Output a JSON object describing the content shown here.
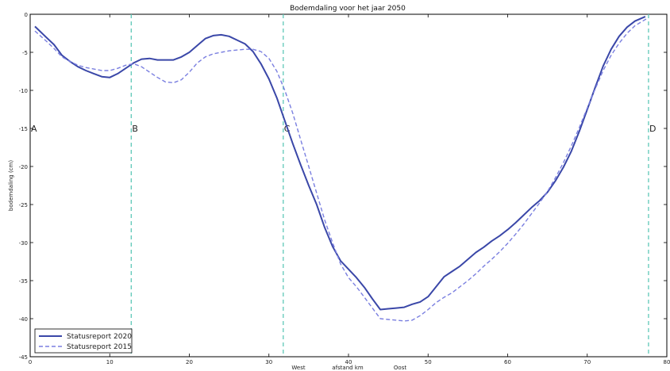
{
  "chart_data": {
    "type": "line",
    "title": "Bodemdaling voor het jaar 2050",
    "xlabel": "afstand km",
    "ylabel": "bodemdaling (cm)",
    "x_direction_labels": {
      "left": "West",
      "right": "Oost"
    },
    "xlim": [
      0,
      80
    ],
    "ylim": [
      -45,
      0
    ],
    "x_ticks": [
      0,
      10,
      20,
      30,
      40,
      50,
      60,
      70,
      80
    ],
    "y_ticks": [
      0,
      -5,
      -10,
      -15,
      -20,
      -25,
      -30,
      -35,
      -40,
      -45
    ],
    "grid": false,
    "legend_position": "bottom-left",
    "section_markers": [
      {
        "label": "A",
        "x": 0
      },
      {
        "label": "B",
        "x": 12.7
      },
      {
        "label": "C",
        "x": 31.8
      },
      {
        "label": "D",
        "x": 77.7
      }
    ],
    "section_marker_y": -15,
    "marker_color": "#5ec8b8",
    "series": [
      {
        "name": "Statusreport 2020",
        "style": "solid",
        "color": "#3a47a8",
        "x": [
          0.6,
          2,
          3,
          4,
          5,
          6,
          7,
          8,
          9,
          10,
          11,
          12,
          13,
          14,
          15,
          16,
          17,
          18,
          19,
          20,
          21,
          22,
          23,
          24,
          25,
          26,
          27,
          28,
          29,
          30,
          31,
          32,
          33,
          34,
          35,
          36,
          37,
          38,
          39,
          40,
          41,
          42,
          43,
          44,
          45,
          46,
          47,
          48,
          49,
          50,
          51,
          52,
          53,
          54,
          55,
          56,
          57,
          58,
          59,
          60,
          61,
          62,
          63,
          64,
          65,
          66,
          67,
          68,
          69,
          70,
          71,
          72,
          73,
          74,
          75,
          76,
          77.3
        ],
        "y": [
          -1.6,
          -3.0,
          -4.0,
          -5.4,
          -6.2,
          -6.9,
          -7.4,
          -7.8,
          -8.2,
          -8.3,
          -7.8,
          -7.1,
          -6.4,
          -5.9,
          -5.8,
          -6.0,
          -6.0,
          -6.0,
          -5.6,
          -5.0,
          -4.1,
          -3.2,
          -2.8,
          -2.7,
          -2.9,
          -3.4,
          -3.9,
          -4.9,
          -6.5,
          -8.5,
          -11.0,
          -14.0,
          -17.0,
          -19.8,
          -22.5,
          -25.0,
          -28.0,
          -30.5,
          -32.4,
          -33.5,
          -34.6,
          -35.9,
          -37.4,
          -38.8,
          -38.7,
          -38.6,
          -38.5,
          -38.1,
          -37.8,
          -37.1,
          -35.8,
          -34.5,
          -33.8,
          -33.1,
          -32.2,
          -31.3,
          -30.6,
          -29.8,
          -29.1,
          -28.3,
          -27.4,
          -26.4,
          -25.4,
          -24.5,
          -23.4,
          -21.9,
          -20.1,
          -18.0,
          -15.4,
          -12.5,
          -9.6,
          -6.8,
          -4.6,
          -2.9,
          -1.7,
          -0.9,
          -0.3
        ]
      },
      {
        "name": "Statusreport 2015",
        "style": "dashed",
        "color": "#7a7fe0",
        "x": [
          0.6,
          2,
          3,
          4,
          5,
          6,
          7,
          8,
          9,
          10,
          11,
          12,
          13,
          14,
          15,
          16,
          17,
          18,
          19,
          20,
          21,
          22,
          23,
          24,
          25,
          26,
          27,
          28,
          29,
          30,
          31,
          32,
          33,
          34,
          35,
          36,
          37,
          38,
          39,
          40,
          41,
          42,
          43,
          44,
          45,
          46,
          47,
          48,
          49,
          50,
          51,
          52,
          53,
          54,
          55,
          56,
          57,
          58,
          59,
          60,
          61,
          62,
          63,
          64,
          65,
          66,
          67,
          68,
          69,
          70,
          71,
          72,
          73,
          74,
          75,
          76,
          77.6
        ],
        "y": [
          -2.2,
          -3.5,
          -4.5,
          -5.6,
          -6.2,
          -6.7,
          -7.0,
          -7.2,
          -7.4,
          -7.4,
          -7.1,
          -6.7,
          -6.5,
          -6.9,
          -7.6,
          -8.3,
          -8.9,
          -9.0,
          -8.6,
          -7.6,
          -6.4,
          -5.6,
          -5.2,
          -5.0,
          -4.8,
          -4.7,
          -4.6,
          -4.6,
          -4.9,
          -5.8,
          -7.5,
          -10.0,
          -13.0,
          -16.5,
          -20.0,
          -23.5,
          -27.0,
          -30.0,
          -32.8,
          -34.6,
          -35.8,
          -37.2,
          -38.6,
          -40.0,
          -40.1,
          -40.2,
          -40.3,
          -40.2,
          -39.6,
          -38.8,
          -37.9,
          -37.2,
          -36.6,
          -35.8,
          -35.0,
          -34.1,
          -33.1,
          -32.2,
          -31.2,
          -30.1,
          -28.9,
          -27.6,
          -26.2,
          -24.8,
          -23.3,
          -21.5,
          -19.5,
          -17.3,
          -14.9,
          -12.3,
          -9.8,
          -7.4,
          -5.4,
          -3.8,
          -2.5,
          -1.5,
          -0.5
        ]
      }
    ]
  }
}
